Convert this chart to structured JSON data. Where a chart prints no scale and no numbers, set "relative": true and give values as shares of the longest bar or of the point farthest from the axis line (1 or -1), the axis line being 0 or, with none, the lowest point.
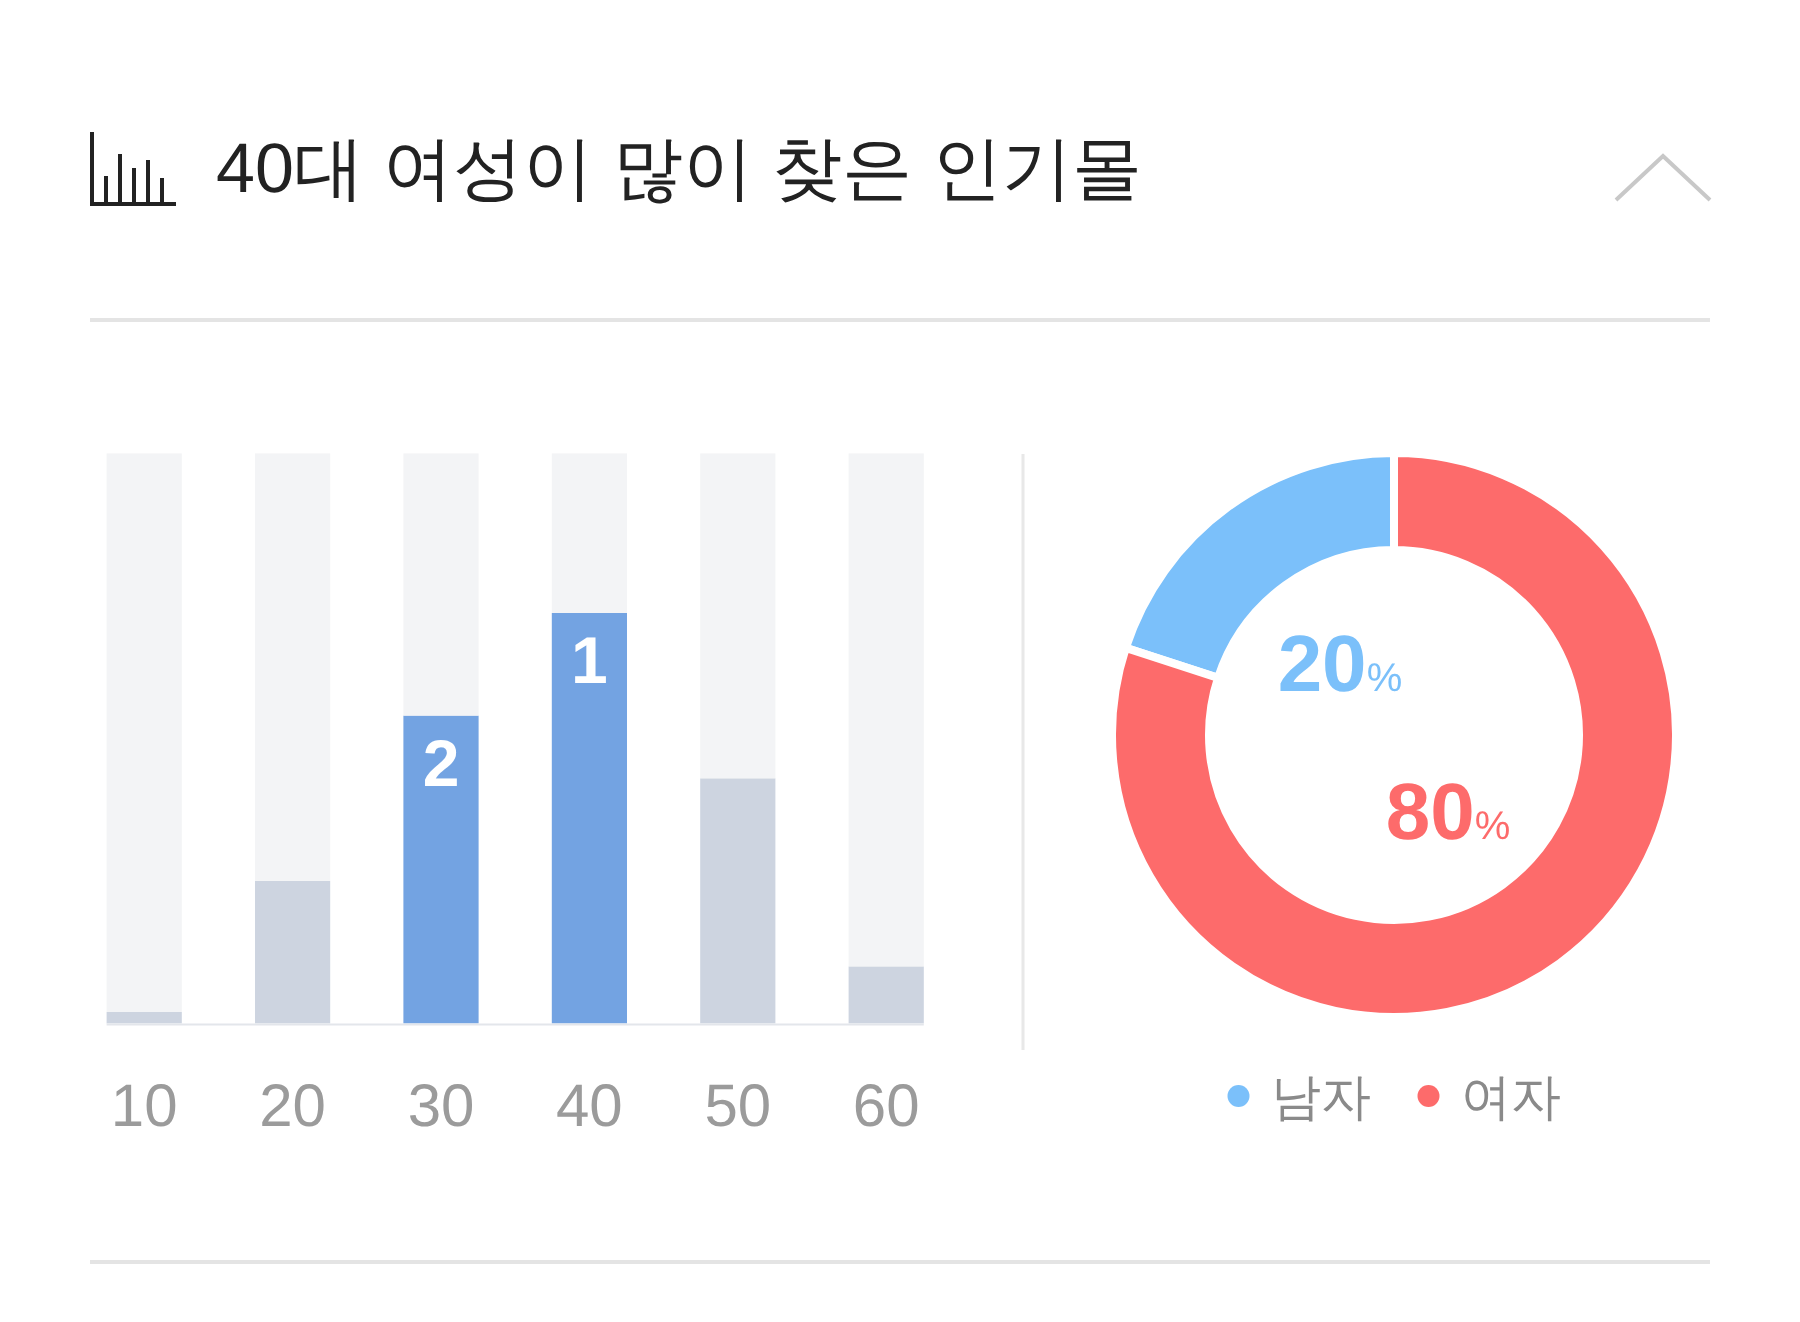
{
  "chart_data": [
    {
      "type": "bar",
      "title": "40대 여성이 많이 찾은 인기몰",
      "categories": [
        "10",
        "20",
        "30",
        "40",
        "50",
        "60"
      ],
      "stacked": true,
      "relative": true,
      "series": [
        {
          "colors": [
            "#cdd4e0",
            "#cdd4e0",
            "#73a3e2",
            "#73a3e2",
            "#cdd4e0",
            "#cdd4e0"
          ],
          "values": [
            0.02,
            0.25,
            0.54,
            0.72,
            0.43,
            0.1
          ]
        },
        {
          "color": "#f3f4f6",
          "values": [
            0.98,
            0.75,
            0.46,
            0.28,
            0.57,
            0.9
          ]
        }
      ],
      "annotations": [
        {
          "text": "2",
          "x": "30",
          "y": 0.54
        },
        {
          "text": "1",
          "x": "40",
          "y": 0.72
        }
      ]
    },
    {
      "type": "donut",
      "categories": [
        "남자",
        "여자"
      ],
      "values": [
        20,
        80
      ],
      "colors": [
        "#7bc0fa",
        "#fd6b6b"
      ],
      "value_labels": [
        "20%",
        "80%"
      ],
      "legend": "bottom"
    }
  ]
}
